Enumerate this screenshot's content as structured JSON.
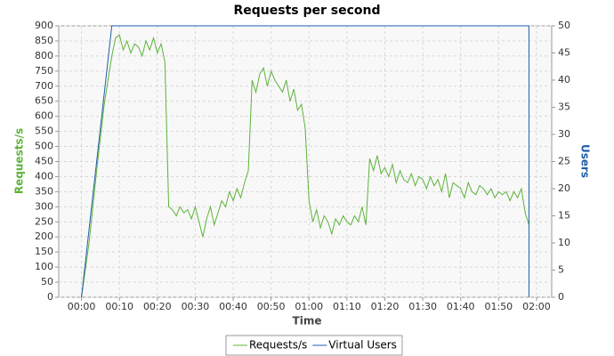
{
  "chart_data": {
    "type": "line",
    "title": "Requests per second",
    "x_label": "Time",
    "y_label": "Requests/s",
    "y2_label": "Users",
    "xlim": [
      -6,
      124
    ],
    "ylim": [
      0,
      900
    ],
    "y2lim": [
      0,
      50
    ],
    "grid": true,
    "xticks": [
      {
        "value": 0,
        "label": "00:00"
      },
      {
        "value": 10,
        "label": "00:10"
      },
      {
        "value": 20,
        "label": "00:20"
      },
      {
        "value": 30,
        "label": "00:30"
      },
      {
        "value": 40,
        "label": "00:40"
      },
      {
        "value": 50,
        "label": "00:50"
      },
      {
        "value": 60,
        "label": "01:00"
      },
      {
        "value": 70,
        "label": "01:10"
      },
      {
        "value": 80,
        "label": "01:20"
      },
      {
        "value": 90,
        "label": "01:30"
      },
      {
        "value": 100,
        "label": "01:40"
      },
      {
        "value": 110,
        "label": "01:50"
      },
      {
        "value": 120,
        "label": "02:00"
      }
    ],
    "yticks": [
      0,
      50,
      100,
      150,
      200,
      250,
      300,
      350,
      400,
      450,
      500,
      550,
      600,
      650,
      700,
      750,
      800,
      850,
      900
    ],
    "y2ticks": [
      0,
      5,
      10,
      15,
      20,
      25,
      30,
      35,
      40,
      45,
      50
    ],
    "legend": "bottom",
    "series": [
      {
        "name": "Requests/s",
        "color": "#5db33a",
        "x": [
          0,
          2,
          4,
          6,
          8,
          9,
          10,
          11,
          12,
          13,
          14,
          15,
          16,
          17,
          18,
          19,
          20,
          21,
          22,
          23,
          24,
          25,
          26,
          27,
          28,
          29,
          30,
          31,
          32,
          33,
          34,
          35,
          36,
          37,
          38,
          39,
          40,
          41,
          42,
          43,
          44,
          45,
          46,
          47,
          48,
          49,
          50,
          51,
          52,
          53,
          54,
          55,
          56,
          57,
          58,
          59,
          60,
          61,
          62,
          63,
          64,
          65,
          66,
          67,
          68,
          69,
          70,
          71,
          72,
          73,
          74,
          75,
          76,
          77,
          78,
          79,
          80,
          81,
          82,
          83,
          84,
          85,
          86,
          87,
          88,
          89,
          90,
          91,
          92,
          93,
          94,
          95,
          96,
          97,
          98,
          99,
          100,
          101,
          102,
          103,
          104,
          105,
          106,
          107,
          108,
          109,
          110,
          111,
          112,
          113,
          114,
          115,
          116,
          117,
          118
        ],
        "values": [
          0,
          180,
          420,
          640,
          800,
          860,
          870,
          820,
          850,
          810,
          840,
          830,
          800,
          850,
          820,
          860,
          810,
          840,
          780,
          300,
          290,
          270,
          300,
          280,
          290,
          260,
          300,
          250,
          200,
          260,
          300,
          240,
          280,
          320,
          300,
          350,
          320,
          360,
          330,
          380,
          420,
          720,
          680,
          740,
          760,
          700,
          750,
          720,
          700,
          680,
          720,
          650,
          690,
          620,
          640,
          560,
          320,
          250,
          290,
          230,
          270,
          250,
          210,
          260,
          240,
          270,
          250,
          240,
          270,
          250,
          300,
          240,
          460,
          420,
          470,
          410,
          430,
          400,
          440,
          380,
          420,
          390,
          380,
          410,
          370,
          400,
          390,
          360,
          400,
          370,
          390,
          350,
          410,
          330,
          380,
          370,
          360,
          330,
          380,
          350,
          340,
          370,
          360,
          340,
          360,
          330,
          350,
          340,
          350,
          320,
          350,
          330,
          360,
          280,
          240
        ]
      },
      {
        "name": "Virtual Users",
        "color": "#1f5da8",
        "axis": "y2",
        "x": [
          0,
          8,
          118,
          118
        ],
        "values": [
          0,
          50,
          50,
          0
        ]
      }
    ]
  }
}
